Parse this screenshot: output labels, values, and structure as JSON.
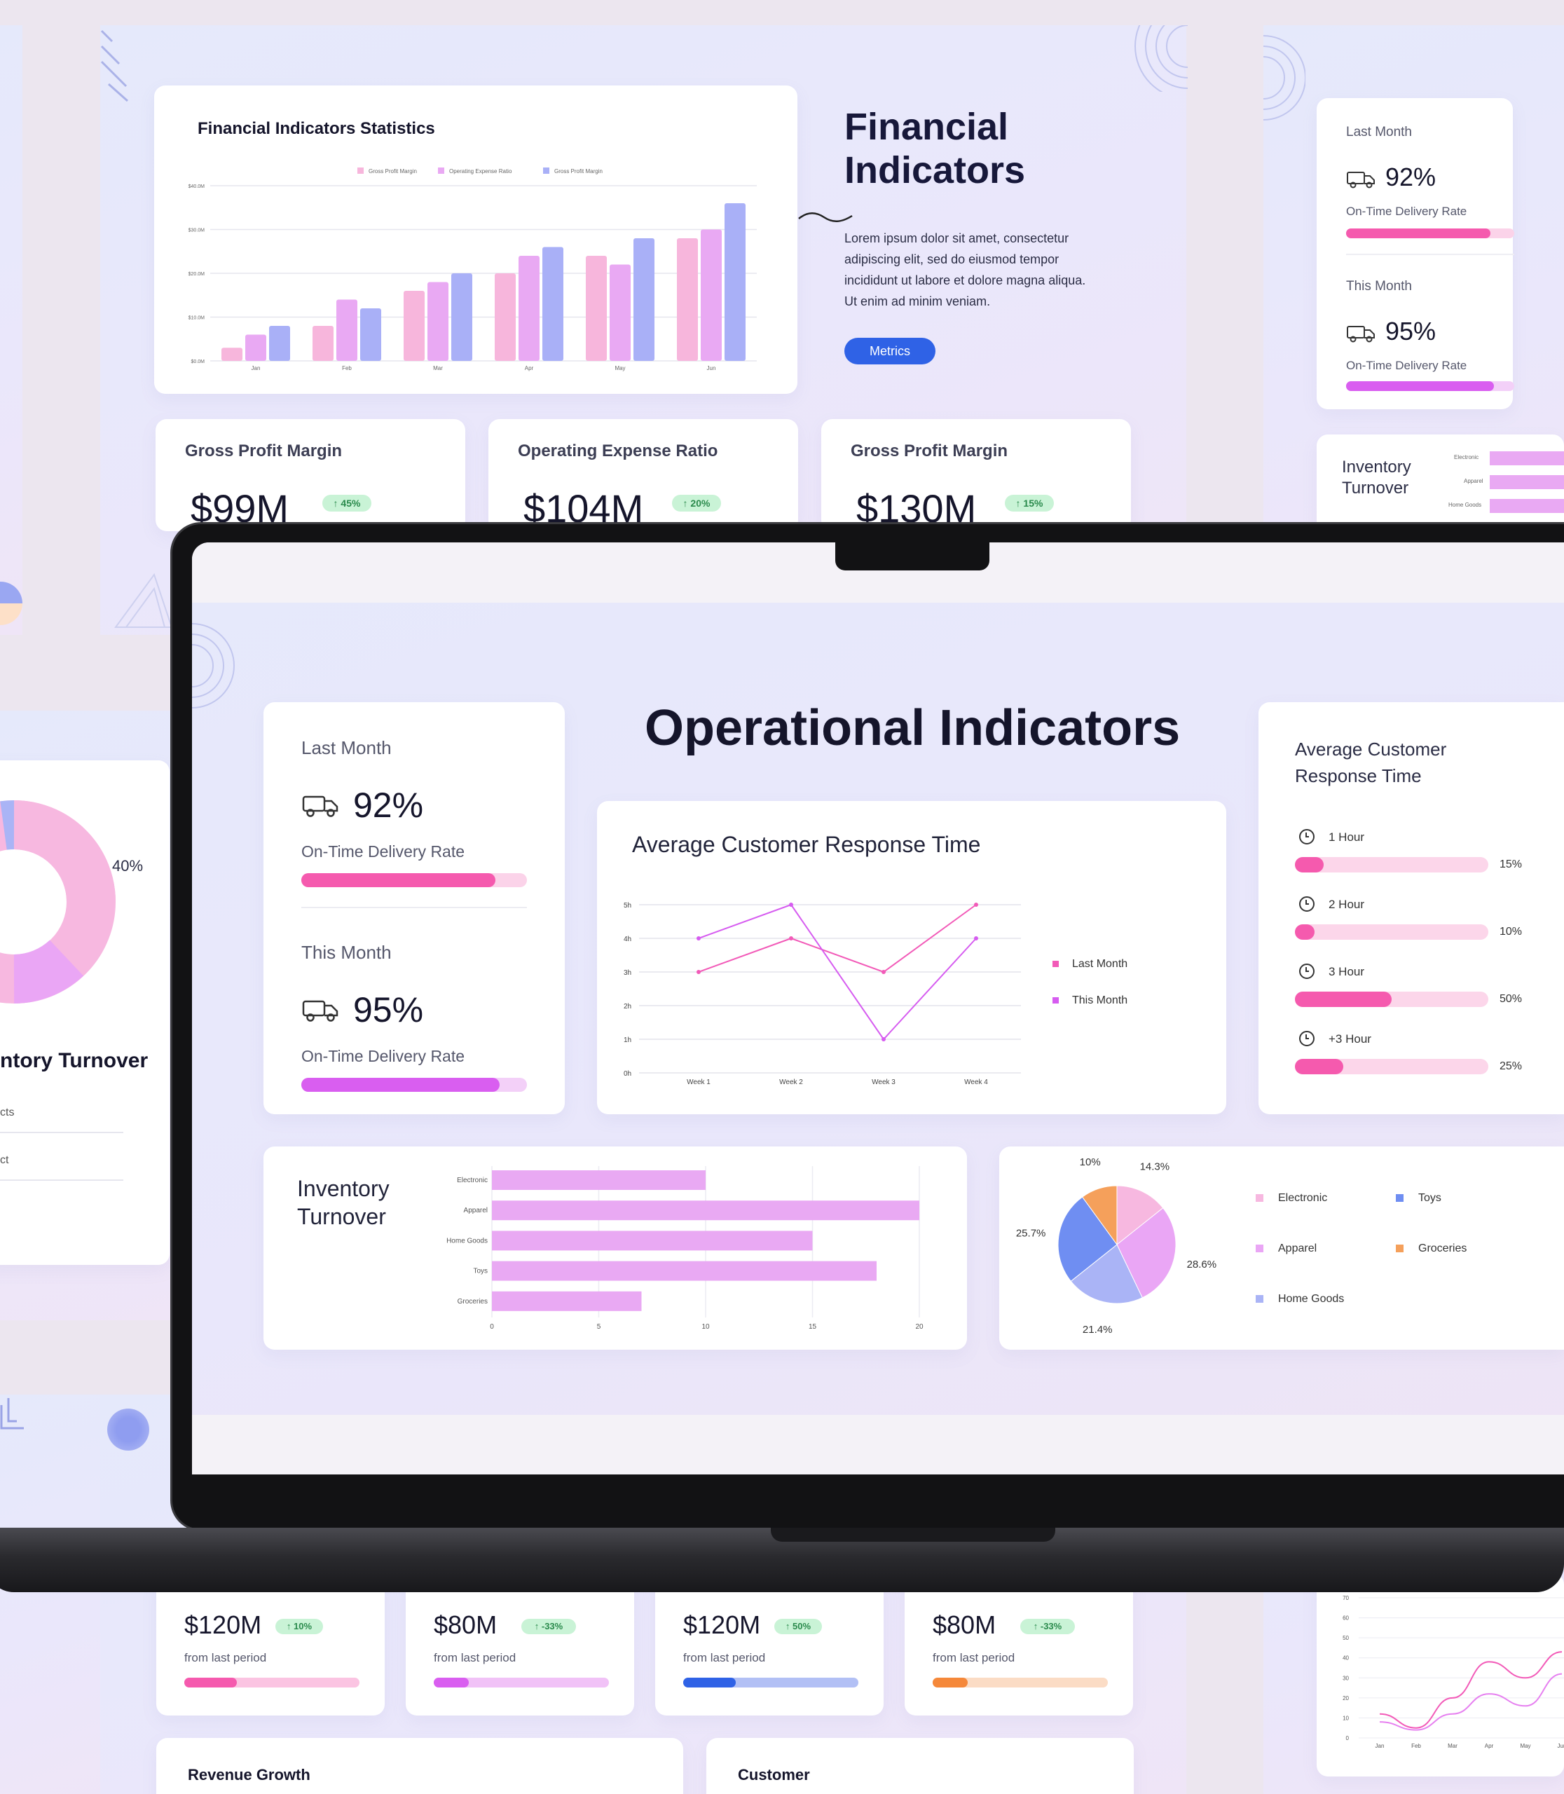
{
  "financial": {
    "chart_card_title": "Financial Indicators Statistics",
    "heading_line1": "Financial",
    "heading_line2": "Indicators",
    "body_lines": [
      "Lorem ipsum dolor sit amet, consectetur",
      "adipiscing elit, sed do eiusmod tempor",
      "incididunt ut labore et dolore magna aliqua.",
      "Ut enim ad minim veniam."
    ],
    "metrics_button": "Metrics",
    "kpis": [
      {
        "title": "Gross Profit Margin",
        "value": "$99M",
        "change": "↑ 45%"
      },
      {
        "title": "Operating Expense Ratio",
        "value": "$104M",
        "change": "↑ 20%"
      },
      {
        "title": "Gross Profit Margin",
        "value": "$130M",
        "change": "↑ 15%"
      }
    ]
  },
  "chart_data": [
    {
      "type": "bar",
      "title": "Financial Indicators Statistics",
      "categories": [
        "Jan",
        "Feb",
        "Mar",
        "Apr",
        "May",
        "Jun"
      ],
      "y_ticks": [
        "$0.0M",
        "$10.0M",
        "$20.0M",
        "$30.0M",
        "$40.0M"
      ],
      "ylim": [
        0,
        40
      ],
      "series": [
        {
          "name": "Gross Profit Margin",
          "values": [
            3,
            8,
            16,
            20,
            24,
            28
          ]
        },
        {
          "name": "Operating Expense Ratio",
          "values": [
            6,
            14,
            18,
            24,
            22,
            30
          ]
        },
        {
          "name": "Gross Profit Margin",
          "values": [
            8,
            12,
            20,
            26,
            28,
            36
          ]
        }
      ],
      "colors": [
        "#f7b6dc",
        "#e9a9f3",
        "#a9b0f7"
      ]
    },
    {
      "type": "line",
      "title": "Average Customer Response Time",
      "categories": [
        "Week 1",
        "Week 2",
        "Week 3",
        "Week 4"
      ],
      "y_ticks": [
        "0h",
        "1h",
        "2h",
        "3h",
        "4h",
        "5h"
      ],
      "ylim": [
        0,
        5
      ],
      "series": [
        {
          "name": "Last Month",
          "values": [
            3,
            4,
            3,
            5
          ]
        },
        {
          "name": "This Month",
          "values": [
            4,
            5,
            1,
            4
          ]
        }
      ],
      "colors": [
        "#f25ab8",
        "#d65cf0"
      ]
    },
    {
      "type": "bar",
      "orientation": "horizontal",
      "title": "Inventory Turnover",
      "categories": [
        "Electronic",
        "Apparel",
        "Home Goods",
        "Toys",
        "Groceries"
      ],
      "values": [
        10,
        20,
        15,
        18,
        7
      ],
      "x_ticks": [
        "0",
        "5",
        "10",
        "15",
        "20"
      ],
      "xlim": [
        0,
        20
      ],
      "colors": [
        "#e9a9f3"
      ]
    },
    {
      "type": "pie",
      "categories": [
        "Electronic",
        "Apparel",
        "Home Goods",
        "Toys",
        "Groceries"
      ],
      "values": [
        14.3,
        28.6,
        21.4,
        25.7,
        10
      ],
      "labels": [
        "14.3%",
        "28.6%",
        "21.4%",
        "25.7%",
        "10%"
      ],
      "colors": [
        "#f7b8e0",
        "#eaa6f5",
        "#aab4f6",
        "#6f8ef2",
        "#f5a05b"
      ]
    },
    {
      "type": "line",
      "y_ticks": [
        "0",
        "10",
        "20",
        "30",
        "40",
        "50",
        "60",
        "70"
      ],
      "categories": [
        "Jan",
        "Feb",
        "Mar",
        "Apr",
        "May",
        "Jun"
      ],
      "ylim": [
        0,
        70
      ],
      "series": [
        {
          "values": [
            12,
            5,
            20,
            38,
            30,
            43
          ]
        },
        {
          "values": [
            8,
            4,
            12,
            22,
            16,
            32
          ]
        }
      ],
      "colors": [
        "#f25ab8",
        "#e680f0"
      ]
    }
  ],
  "side_card": {
    "last_month_label": "Last Month",
    "last_month_value": "92%",
    "last_month_caption": "On-Time Delivery Rate",
    "last_month_progress": 0.86,
    "this_month_label": "This Month",
    "this_month_value": "95%",
    "this_month_caption": "On-Time Delivery Rate",
    "this_month_progress": 0.88,
    "inventory_line1": "Inventory",
    "inventory_line2": "Turnover",
    "inventory_cats": [
      "Electronic",
      "Apparel",
      "Home Goods"
    ]
  },
  "left_slide": {
    "donut_label": "40%",
    "title": "ntory Turnover",
    "row1": "cts",
    "row2": "ct"
  },
  "ops": {
    "title": "Operational Indicators",
    "delivery": {
      "last_label": "Last Month",
      "last_value": "92%",
      "last_caption": "On-Time Delivery Rate",
      "last_progress": 0.86,
      "this_label": "This Month",
      "this_value": "95%",
      "this_caption": "On-Time Delivery Rate",
      "this_progress": 0.88
    },
    "response_chart_title": "Average Customer Response Time",
    "response_card_title_line1": "Average Customer",
    "response_card_title_line2": "Response Time",
    "response_items": [
      {
        "label": "1 Hour",
        "percent": "15%",
        "value": 0.15
      },
      {
        "label": "2 Hour",
        "percent": "10%",
        "value": 0.1
      },
      {
        "label": "3 Hour",
        "percent": "50%",
        "value": 0.5
      },
      {
        "label": "+3 Hour",
        "percent": "25%",
        "value": 0.25
      }
    ],
    "inventory_line1": "Inventory",
    "inventory_line2": "Turnover"
  },
  "bottom": {
    "kpis": [
      {
        "value": "$120M",
        "change": "↑ 10%",
        "caption": "from last period",
        "progress": 0.3,
        "fill": "#f55aae",
        "track": "#fbc4e2"
      },
      {
        "value": "$80M",
        "change": "↑ -33%",
        "caption": "from last period",
        "progress": 0.2,
        "fill": "#d95ef0",
        "track": "#f1c2f7"
      },
      {
        "value": "$120M",
        "change": "↑ 50%",
        "caption": "from last period",
        "progress": 0.3,
        "fill": "#2f62e6",
        "track": "#b2c0f5"
      },
      {
        "value": "$80M",
        "change": "↑ -33%",
        "caption": "from last period",
        "progress": 0.2,
        "fill": "#f5883a",
        "track": "#fbdcc5"
      }
    ],
    "revenue_title": "Revenue Growth",
    "customer_title": "Customer"
  }
}
